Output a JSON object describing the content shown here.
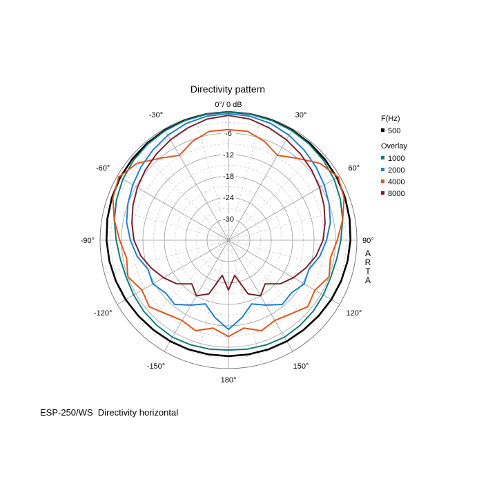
{
  "chart_data": {
    "type": "polar",
    "title": "Directivity pattern",
    "top_label": "0°/ 0 dB",
    "radial_unit": "dB",
    "rlim": [
      -36,
      0
    ],
    "ring_labels": [
      "-6",
      "-12",
      "-18",
      "-24",
      "-30"
    ],
    "ring_values": [
      -6,
      -12,
      -18,
      -24,
      -30
    ],
    "angle_labels": [
      {
        "angle": -30,
        "label": "-30°"
      },
      {
        "angle": 30,
        "label": "30°"
      },
      {
        "angle": -60,
        "label": "-60°"
      },
      {
        "angle": 60,
        "label": "60°"
      },
      {
        "angle": -90,
        "label": "-90°"
      },
      {
        "angle": 90,
        "label": "90°"
      },
      {
        "angle": -120,
        "label": "-120°"
      },
      {
        "angle": 120,
        "label": "120°"
      },
      {
        "angle": -150,
        "label": "-150°"
      },
      {
        "angle": 150,
        "label": "150°"
      },
      {
        "angle": 180,
        "label": "180°"
      }
    ],
    "side_label": [
      "A",
      "R",
      "T",
      "A"
    ],
    "legend": {
      "primary_header": "F(Hz)",
      "overlay_header": "Overlay",
      "position": "right"
    },
    "angles": [
      0,
      10,
      20,
      30,
      40,
      50,
      60,
      70,
      80,
      90,
      100,
      110,
      120,
      130,
      140,
      150,
      160,
      170,
      180,
      190,
      200,
      210,
      220,
      230,
      240,
      250,
      260,
      270,
      280,
      290,
      300,
      310,
      320,
      330,
      340,
      350
    ],
    "series": [
      {
        "name": "500",
        "group": "primary",
        "color": "#000000",
        "values": [
          0,
          -0.1,
          -0.2,
          -0.3,
          -0.5,
          -0.7,
          -0.9,
          -1.2,
          -1.5,
          -1.8,
          -2.1,
          -2.4,
          -2.7,
          -3.0,
          -3.2,
          -3.3,
          -3.4,
          -3.5,
          -3.5,
          -3.5,
          -3.4,
          -3.3,
          -3.2,
          -3.0,
          -2.7,
          -2.4,
          -2.1,
          -1.8,
          -1.5,
          -1.2,
          -0.9,
          -0.7,
          -0.5,
          -0.3,
          -0.2,
          -0.1
        ]
      },
      {
        "name": "1000",
        "group": "overlay",
        "color": "#0e7a78",
        "values": [
          0,
          -0.1,
          -0.3,
          -0.5,
          -0.8,
          -1.2,
          -1.8,
          -2.6,
          -3.5,
          -4.5,
          -5.2,
          -5.5,
          -5.3,
          -5.0,
          -4.8,
          -4.6,
          -4.8,
          -5.0,
          -5.2,
          -5.0,
          -4.8,
          -4.6,
          -4.8,
          -5.0,
          -5.3,
          -5.5,
          -5.2,
          -4.5,
          -3.5,
          -2.6,
          -1.8,
          -1.2,
          -0.8,
          -0.5,
          -0.3,
          -0.1
        ]
      },
      {
        "name": "2000",
        "group": "overlay",
        "color": "#1f7fd0",
        "values": [
          -0.5,
          -0.7,
          -1.2,
          -2.0,
          -3.0,
          -4.0,
          -5.0,
          -6.0,
          -7.0,
          -8.5,
          -10.0,
          -12.0,
          -11.5,
          -13.0,
          -12.5,
          -15.0,
          -17.0,
          -14.0,
          -11.0,
          -14.0,
          -17.0,
          -15.0,
          -12.5,
          -13.0,
          -11.5,
          -12.0,
          -10.0,
          -8.5,
          -7.0,
          -6.0,
          -5.0,
          -4.0,
          -3.0,
          -2.0,
          -1.2,
          -0.7
        ]
      },
      {
        "name": "4000",
        "group": "overlay",
        "color": "#e2541b",
        "values": [
          -5.0,
          -5.0,
          -6.5,
          -8.5,
          -6.0,
          -2.5,
          -0.5,
          -1.5,
          -3.5,
          -5.5,
          -7.0,
          -6.0,
          -8.0,
          -7.0,
          -9.0,
          -10.0,
          -9.0,
          -11.0,
          -9.0,
          -11.0,
          -9.0,
          -10.0,
          -9.0,
          -7.0,
          -8.0,
          -6.0,
          -7.0,
          -5.5,
          -3.5,
          -1.5,
          -0.5,
          -2.5,
          -6.0,
          -8.5,
          -6.5,
          -5.0
        ]
      },
      {
        "name": "8000",
        "group": "overlay",
        "color": "#7a1f2b",
        "values": [
          -1.0,
          -1.5,
          -2.5,
          -3.5,
          -4.5,
          -5.5,
          -6.5,
          -7.5,
          -8.5,
          -9.5,
          -11.0,
          -13.0,
          -15.0,
          -17.0,
          -20.0,
          -18.0,
          -20.0,
          -26.0,
          -22.0,
          -26.0,
          -20.0,
          -18.0,
          -20.0,
          -17.0,
          -15.0,
          -13.0,
          -11.0,
          -9.5,
          -8.5,
          -7.5,
          -6.5,
          -5.5,
          -4.5,
          -3.5,
          -2.5,
          -1.5
        ]
      }
    ]
  },
  "caption": "ESP-250/WS  Directivity horizontal"
}
